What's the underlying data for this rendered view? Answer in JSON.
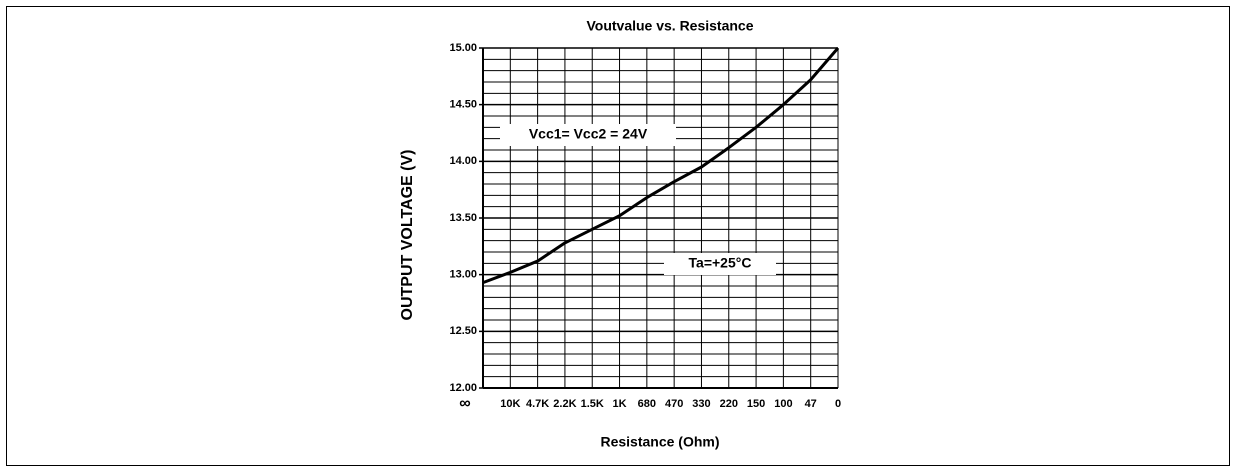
{
  "chart_data": {
    "type": "line",
    "title": "Voutvalue vs. Resistance",
    "x_label": "Resistance (Ohm)",
    "y_label": "OUTPUT VOLTAGE  (V)",
    "annotations": [
      "Vcc1= Vcc2 = 24V",
      "Ta=+25°C"
    ],
    "categories": [
      "∞",
      "10K",
      "4.7K",
      "2.2K",
      "1.5K",
      "1K",
      "680",
      "470",
      "330",
      "220",
      "150",
      "100",
      "47",
      "0"
    ],
    "series": [
      {
        "name": "Vout",
        "color": "#000000",
        "values": [
          12.93,
          13.02,
          13.12,
          13.28,
          13.4,
          13.52,
          13.68,
          13.82,
          13.95,
          14.12,
          14.3,
          14.5,
          14.72,
          15.0
        ]
      }
    ],
    "ylim": [
      12,
      15
    ],
    "yticks": [
      {
        "value": 12,
        "label": "12.00"
      },
      {
        "value": 12.5,
        "label": "12.50"
      },
      {
        "value": 13,
        "label": "13.00"
      },
      {
        "value": 13.5,
        "label": "13.50"
      },
      {
        "value": 14,
        "label": "14.00"
      },
      {
        "value": 14.5,
        "label": "14.50"
      },
      {
        "value": 15,
        "label": "15.00"
      }
    ],
    "minor_yticks": [
      12.1,
      12.2,
      12.3,
      12.4,
      12.6,
      12.7,
      12.8,
      12.9,
      13.1,
      13.2,
      13.3,
      13.4,
      13.6,
      13.7,
      13.8,
      13.9,
      14.1,
      14.2,
      14.3,
      14.4,
      14.6,
      14.7,
      14.8,
      14.9
    ],
    "grid": true
  }
}
